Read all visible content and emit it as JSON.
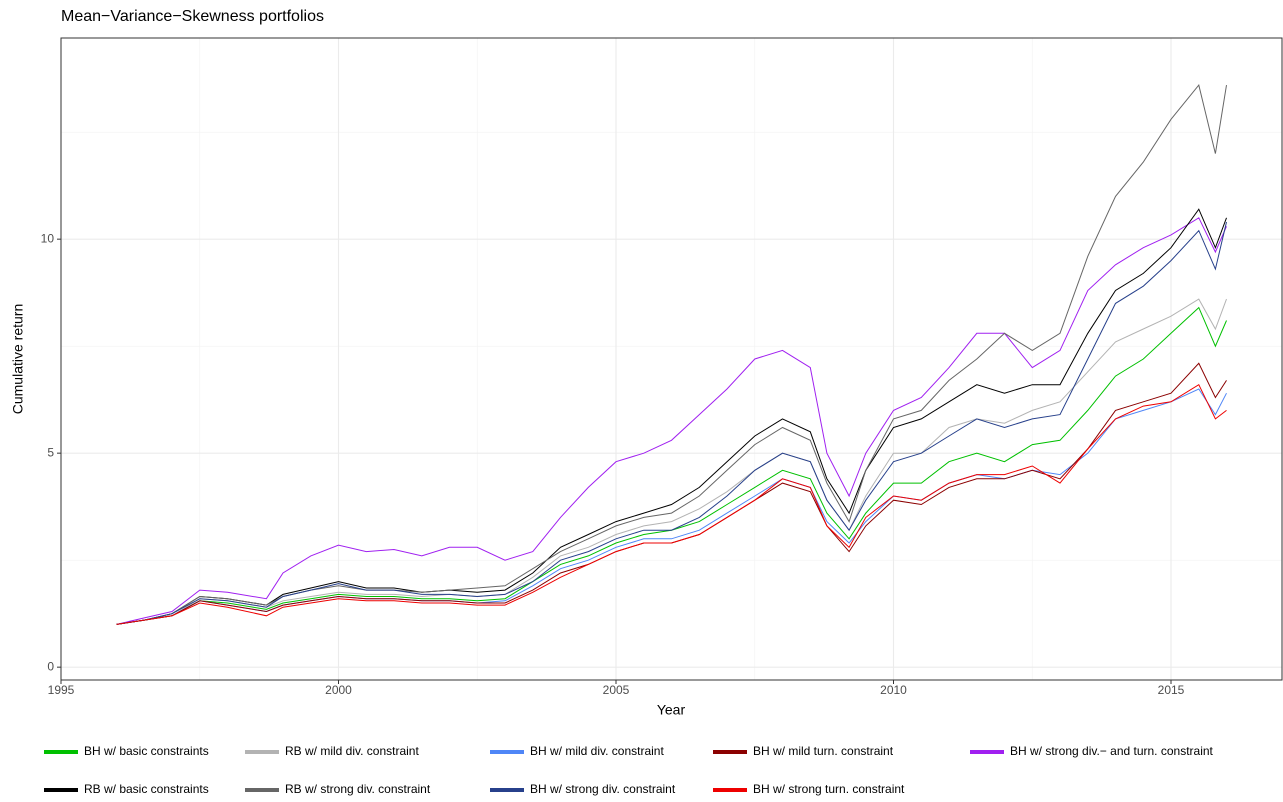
{
  "chart_data": {
    "type": "line",
    "title": "Mean−Variance−Skewness portfolios",
    "x_label": "Year",
    "y_label": "Cumulative return",
    "xlim": [
      1995,
      2017
    ],
    "xticks": [
      1995,
      2000,
      2005,
      2010,
      2015
    ],
    "x_minor_grid": [
      1997.5,
      2002.5,
      2007.5,
      2012.5
    ],
    "ylim": [
      -0.3,
      14.7
    ],
    "yticks": [
      0,
      5,
      10
    ],
    "y_minor_grid": [
      2.5,
      7.5,
      12.5
    ],
    "grid": true,
    "legend_position": "bottom",
    "x": [
      1996,
      1996.5,
      1997,
      1997.5,
      1998,
      1998.7,
      1999,
      1999.5,
      2000,
      2000.5,
      2001,
      2001.5,
      2002,
      2002.5,
      2003,
      2003.5,
      2004,
      2004.5,
      2005,
      2005.5,
      2006,
      2006.5,
      2007,
      2007.5,
      2008,
      2008.5,
      2008.8,
      2009.2,
      2009.5,
      2010,
      2010.5,
      2011,
      2011.5,
      2012,
      2012.5,
      2013,
      2013.5,
      2014,
      2014.5,
      2015,
      2015.5,
      2015.8,
      2016
    ],
    "series": [
      {
        "name": "BH w/ basic constraints",
        "color": "#00c000",
        "values": [
          1.0,
          1.1,
          1.2,
          1.55,
          1.5,
          1.35,
          1.5,
          1.6,
          1.7,
          1.65,
          1.65,
          1.6,
          1.6,
          1.55,
          1.6,
          2.0,
          2.4,
          2.6,
          2.9,
          3.1,
          3.2,
          3.4,
          3.8,
          4.2,
          4.6,
          4.4,
          3.6,
          3.0,
          3.6,
          4.3,
          4.3,
          4.8,
          5.0,
          4.8,
          5.2,
          5.3,
          6.0,
          6.8,
          7.2,
          7.8,
          8.4,
          7.5,
          8.1
        ]
      },
      {
        "name": "RB w/ mild div. constraint",
        "color": "#b3b3b3",
        "values": [
          1.0,
          1.1,
          1.2,
          1.6,
          1.55,
          1.4,
          1.55,
          1.65,
          1.75,
          1.7,
          1.7,
          1.65,
          1.7,
          1.65,
          1.7,
          2.1,
          2.6,
          2.8,
          3.1,
          3.3,
          3.4,
          3.7,
          4.1,
          4.6,
          5.0,
          4.8,
          3.9,
          3.2,
          4.0,
          5.0,
          5.0,
          5.6,
          5.8,
          5.7,
          6.0,
          6.2,
          6.9,
          7.6,
          7.9,
          8.2,
          8.6,
          7.9,
          8.6
        ]
      },
      {
        "name": "BH w/ mild div. constraint",
        "color": "#4f86f7",
        "values": [
          1.0,
          1.1,
          1.2,
          1.55,
          1.45,
          1.3,
          1.45,
          1.55,
          1.65,
          1.6,
          1.6,
          1.55,
          1.55,
          1.5,
          1.55,
          1.9,
          2.3,
          2.5,
          2.8,
          3.0,
          3.0,
          3.2,
          3.6,
          4.0,
          4.4,
          4.2,
          3.4,
          2.9,
          3.4,
          4.0,
          3.9,
          4.3,
          4.5,
          4.4,
          4.6,
          4.5,
          5.0,
          5.8,
          6.0,
          6.2,
          6.5,
          5.9,
          6.4
        ]
      },
      {
        "name": "BH w/ mild turn. constraint",
        "color": "#8b0000",
        "values": [
          1.0,
          1.1,
          1.2,
          1.55,
          1.45,
          1.3,
          1.45,
          1.55,
          1.65,
          1.6,
          1.6,
          1.55,
          1.55,
          1.5,
          1.5,
          1.8,
          2.2,
          2.4,
          2.7,
          2.9,
          2.9,
          3.1,
          3.5,
          3.9,
          4.3,
          4.1,
          3.3,
          2.7,
          3.3,
          3.9,
          3.8,
          4.2,
          4.4,
          4.4,
          4.6,
          4.4,
          5.1,
          6.0,
          6.2,
          6.4,
          7.1,
          6.3,
          6.7
        ]
      },
      {
        "name": "BH w/ strong div.− and turn. constraint",
        "color": "#a020f0",
        "values": [
          1.0,
          1.15,
          1.3,
          1.8,
          1.75,
          1.6,
          2.2,
          2.6,
          2.85,
          2.7,
          2.75,
          2.6,
          2.8,
          2.8,
          2.5,
          2.7,
          3.5,
          4.2,
          4.8,
          5.0,
          5.3,
          5.9,
          6.5,
          7.2,
          7.4,
          7.0,
          5.0,
          4.0,
          5.0,
          6.0,
          6.3,
          7.0,
          7.8,
          7.8,
          7.0,
          7.4,
          8.8,
          9.4,
          9.8,
          10.1,
          10.5,
          9.7,
          10.3
        ]
      },
      {
        "name": "RB w/ basic constraints",
        "color": "#000000",
        "values": [
          1.0,
          1.1,
          1.25,
          1.65,
          1.6,
          1.45,
          1.7,
          1.85,
          2.0,
          1.85,
          1.85,
          1.75,
          1.8,
          1.75,
          1.8,
          2.2,
          2.8,
          3.1,
          3.4,
          3.6,
          3.8,
          4.2,
          4.8,
          5.4,
          5.8,
          5.5,
          4.4,
          3.6,
          4.6,
          5.6,
          5.8,
          6.2,
          6.6,
          6.4,
          6.6,
          6.6,
          7.8,
          8.8,
          9.2,
          9.8,
          10.7,
          9.8,
          10.5
        ]
      },
      {
        "name": "RB w/ strong div. constraint",
        "color": "#666666",
        "values": [
          1.0,
          1.1,
          1.25,
          1.65,
          1.6,
          1.45,
          1.65,
          1.8,
          1.9,
          1.8,
          1.8,
          1.75,
          1.8,
          1.85,
          1.9,
          2.3,
          2.7,
          3.0,
          3.3,
          3.5,
          3.6,
          4.0,
          4.6,
          5.2,
          5.6,
          5.3,
          4.3,
          3.4,
          4.6,
          5.8,
          6.0,
          6.7,
          7.2,
          7.8,
          7.4,
          7.8,
          9.6,
          11.0,
          11.8,
          12.8,
          13.6,
          12.0,
          13.6
        ]
      },
      {
        "name": "BH w/ strong div. constraint",
        "color": "#27408b",
        "values": [
          1.0,
          1.1,
          1.25,
          1.6,
          1.55,
          1.4,
          1.65,
          1.8,
          1.95,
          1.8,
          1.8,
          1.7,
          1.7,
          1.65,
          1.7,
          2.0,
          2.5,
          2.7,
          3.0,
          3.2,
          3.2,
          3.5,
          4.0,
          4.6,
          5.0,
          4.8,
          3.9,
          3.2,
          3.9,
          4.8,
          5.0,
          5.4,
          5.8,
          5.6,
          5.8,
          5.9,
          7.2,
          8.5,
          8.9,
          9.5,
          10.2,
          9.3,
          10.4
        ]
      },
      {
        "name": "BH w/ strong turn. constraint",
        "color": "#ee0000",
        "values": [
          1.0,
          1.1,
          1.2,
          1.5,
          1.4,
          1.2,
          1.4,
          1.5,
          1.6,
          1.55,
          1.55,
          1.5,
          1.5,
          1.45,
          1.45,
          1.75,
          2.1,
          2.4,
          2.7,
          2.9,
          2.9,
          3.1,
          3.5,
          3.9,
          4.4,
          4.2,
          3.3,
          2.8,
          3.5,
          4.0,
          3.9,
          4.3,
          4.5,
          4.5,
          4.7,
          4.3,
          5.1,
          5.8,
          6.1,
          6.2,
          6.6,
          5.8,
          6.0
        ]
      }
    ]
  }
}
